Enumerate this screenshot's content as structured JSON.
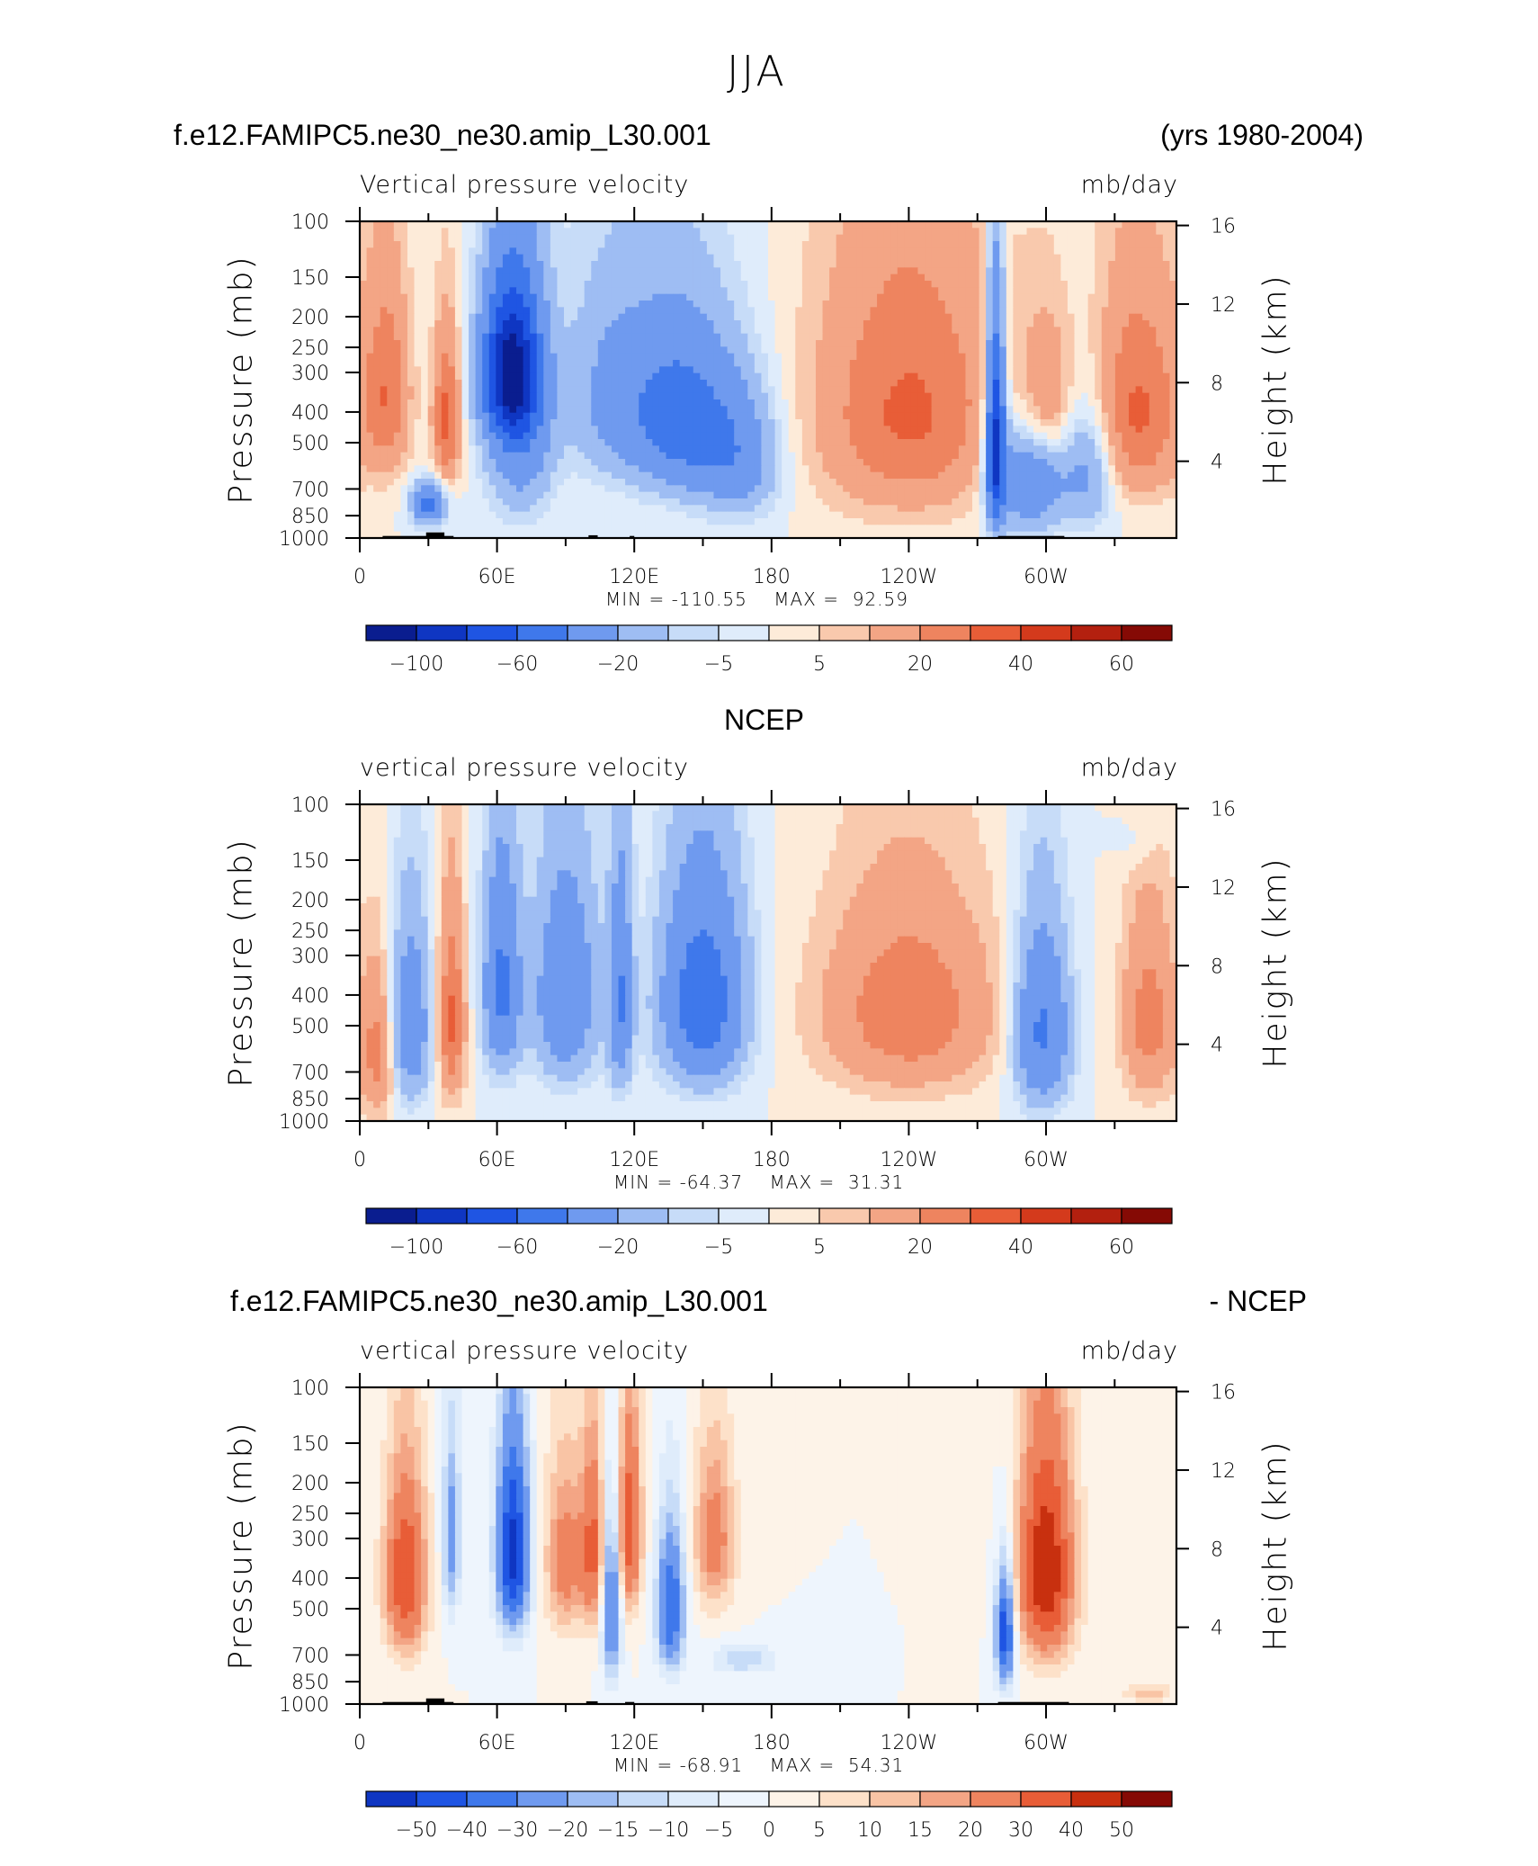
{
  "main_title": "JJA",
  "colors": {
    "neg": [
      "#0a1d8f",
      "#0f36c2",
      "#1f55e3",
      "#3f78eb",
      "#6f9aef",
      "#9ebdf3",
      "#c7dcf8",
      "#dfecfb"
    ],
    "pos": [
      "#fdebd9",
      "#f9c9ad",
      "#f3a585",
      "#ee845f",
      "#e85d37",
      "#d43a1c",
      "#b3200f",
      "#850a05"
    ],
    "diff": [
      "#0f36c2",
      "#1f55e3",
      "#3f78eb",
      "#6f9aef",
      "#9ebdf3",
      "#c7dcf8",
      "#dfecfb",
      "#eef5fd",
      "#fdf3e8",
      "#fde1c9",
      "#f9c4a5",
      "#f3a585",
      "#ee845f",
      "#e85d37",
      "#c8300f",
      "#850a05"
    ],
    "land": "#000000"
  },
  "panels": [
    {
      "title_left": "f.e12.FAMIPC5.ne30_ne30.amip_L30.001",
      "title_right": "(yrs 1980-2004)",
      "sub_left": "Vertical pressure velocity",
      "sub_right": "mb/day",
      "ylabel": "Pressure (mb)",
      "ylabel_right": "Height (km)",
      "min_label": "MIN =",
      "min_value": "-110.55",
      "max_label": "MAX =",
      "max_value": "92.59",
      "colorbar_labels": [
        "−100",
        "−60",
        "−20",
        "−5",
        "5",
        "20",
        "40",
        "60"
      ]
    },
    {
      "title_left": "NCEP",
      "title_right": "",
      "sub_left": "vertical pressure velocity",
      "sub_right": "mb/day",
      "ylabel": "Pressure (mb)",
      "ylabel_right": "Height (km)",
      "min_label": "MIN =",
      "min_value": "-64.37",
      "max_label": "MAX =",
      "max_value": "31.31",
      "colorbar_labels": [
        "−100",
        "−60",
        "−20",
        "−5",
        "5",
        "20",
        "40",
        "60"
      ]
    },
    {
      "title_left": "f.e12.FAMIPC5.ne30_ne30.amip_L30.001",
      "title_right": "- NCEP",
      "sub_left": "vertical pressure velocity",
      "sub_right": "mb/day",
      "ylabel": "Pressure (mb)",
      "ylabel_right": "Height (km)",
      "min_label": "MIN =",
      "min_value": "-68.91",
      "max_label": "MAX =",
      "max_value": "54.31",
      "colorbar_labels": [
        "−50",
        "−40",
        "−30",
        "−20",
        "−15",
        "−10",
        "−5",
        "0",
        "5",
        "10",
        "15",
        "20",
        "30",
        "40",
        "50"
      ]
    }
  ],
  "chart_data": {
    "type": "heatmap",
    "title": "JJA",
    "x_tick_labels": [
      "0",
      "60E",
      "120E",
      "180",
      "120W",
      "60W"
    ],
    "x_range_deg": [
      0,
      357
    ],
    "pressure_ticks": [
      100,
      150,
      200,
      250,
      300,
      400,
      500,
      700,
      850,
      1000
    ],
    "pressure_tick_labels": [
      "100",
      "150",
      "200",
      "250",
      "300",
      "400",
      "500",
      "700",
      "850",
      "1000"
    ],
    "height_ticks_km": [
      4,
      8,
      12,
      16
    ],
    "height_tick_labels": [
      "4",
      "8",
      "12",
      "16"
    ],
    "levels_main": [
      -100,
      -80,
      -60,
      -40,
      -20,
      -10,
      -5,
      0,
      5,
      10,
      20,
      30,
      40,
      50,
      60
    ],
    "levels_diff": [
      -50,
      -40,
      -30,
      -20,
      -15,
      -10,
      -5,
      0,
      5,
      10,
      15,
      20,
      30,
      40,
      50
    ],
    "panels": [
      {
        "name": "model",
        "min": -110.55,
        "max": 92.59,
        "blobs": [
          {
            "lon": 12,
            "p": 350,
            "dlon": 10,
            "dp": 250,
            "amp": 28
          },
          {
            "lon": 38,
            "p": 420,
            "dlon": 6,
            "dp": 230,
            "amp": 34
          },
          {
            "lon": 30,
            "p": 780,
            "dlon": 7,
            "dp": 120,
            "amp": -45
          },
          {
            "lon": 66,
            "p": 300,
            "dlon": 12,
            "dp": 160,
            "amp": -95
          },
          {
            "lon": 70,
            "p": 450,
            "dlon": 14,
            "dp": 330,
            "amp": -35
          },
          {
            "lon": 140,
            "p": 420,
            "dlon": 22,
            "dp": 250,
            "amp": -50
          },
          {
            "lon": 165,
            "p": 560,
            "dlon": 18,
            "dp": 260,
            "amp": -30
          },
          {
            "lon": 110,
            "p": 350,
            "dlon": 20,
            "dp": 250,
            "amp": -22
          },
          {
            "lon": 240,
            "p": 400,
            "dlon": 40,
            "dp": 380,
            "amp": 32
          },
          {
            "lon": 278,
            "p": 500,
            "dlon": 4,
            "dp": 350,
            "amp": -90
          },
          {
            "lon": 292,
            "p": 650,
            "dlon": 15,
            "dp": 260,
            "amp": -40
          },
          {
            "lon": 318,
            "p": 600,
            "dlon": 12,
            "dp": 280,
            "amp": -25
          },
          {
            "lon": 340,
            "p": 400,
            "dlon": 20,
            "dp": 300,
            "amp": 32
          },
          {
            "lon": 300,
            "p": 380,
            "dlon": 12,
            "dp": 200,
            "amp": 22
          }
        ],
        "land": [
          [
            10,
            41,
            985,
            1000
          ],
          [
            29,
            37,
            960,
            1000
          ],
          [
            100,
            104,
            980,
            1000
          ],
          [
            118,
            120,
            985,
            1000
          ],
          [
            279,
            308,
            985,
            1000
          ]
        ]
      },
      {
        "name": "NCEP",
        "min": -64.37,
        "max": 31.31,
        "blobs": [
          {
            "lon": 8,
            "p": 600,
            "dlon": 8,
            "dp": 330,
            "amp": 25
          },
          {
            "lon": 22,
            "p": 500,
            "dlon": 9,
            "dp": 320,
            "amp": -35
          },
          {
            "lon": 40,
            "p": 480,
            "dlon": 6,
            "dp": 330,
            "amp": 32
          },
          {
            "lon": 62,
            "p": 380,
            "dlon": 8,
            "dp": 280,
            "amp": -45
          },
          {
            "lon": 90,
            "p": 400,
            "dlon": 14,
            "dp": 300,
            "amp": -38
          },
          {
            "lon": 114,
            "p": 420,
            "dlon": 5,
            "dp": 320,
            "amp": -40
          },
          {
            "lon": 150,
            "p": 420,
            "dlon": 18,
            "dp": 300,
            "amp": -55
          },
          {
            "lon": 240,
            "p": 450,
            "dlon": 38,
            "dp": 320,
            "amp": 28
          },
          {
            "lon": 298,
            "p": 520,
            "dlon": 12,
            "dp": 330,
            "amp": -45
          },
          {
            "lon": 345,
            "p": 480,
            "dlon": 12,
            "dp": 330,
            "amp": 25
          },
          {
            "lon": 340,
            "p": 130,
            "dlon": 10,
            "dp": 30,
            "amp": -6
          }
        ],
        "land": []
      },
      {
        "name": "diff",
        "min": -68.91,
        "max": 54.31,
        "blobs": [
          {
            "lon": 20,
            "p": 400,
            "dlon": 9,
            "dp": 260,
            "amp": 40
          },
          {
            "lon": 40,
            "p": 300,
            "dlon": 4,
            "dp": 200,
            "amp": -25
          },
          {
            "lon": 67,
            "p": 330,
            "dlon": 7,
            "dp": 230,
            "amp": -55
          },
          {
            "lon": 90,
            "p": 350,
            "dlon": 9,
            "dp": 220,
            "amp": 25
          },
          {
            "lon": 102,
            "p": 320,
            "dlon": 5,
            "dp": 220,
            "amp": 30
          },
          {
            "lon": 110,
            "p": 500,
            "dlon": 4,
            "dp": 300,
            "amp": -35
          },
          {
            "lon": 118,
            "p": 280,
            "dlon": 5,
            "dp": 200,
            "amp": 38
          },
          {
            "lon": 136,
            "p": 500,
            "dlon": 6,
            "dp": 260,
            "amp": -40
          },
          {
            "lon": 155,
            "p": 300,
            "dlon": 9,
            "dp": 180,
            "amp": 25
          },
          {
            "lon": 168,
            "p": 720,
            "dlon": 14,
            "dp": 80,
            "amp": -15
          },
          {
            "lon": 282,
            "p": 600,
            "dlon": 4,
            "dp": 250,
            "amp": -50
          },
          {
            "lon": 300,
            "p": 380,
            "dlon": 12,
            "dp": 300,
            "amp": 50
          },
          {
            "lon": 345,
            "p": 930,
            "dlon": 10,
            "dp": 60,
            "amp": 15
          }
        ],
        "land": [
          [
            10,
            41,
            985,
            1000
          ],
          [
            29,
            37,
            960,
            1000
          ],
          [
            99,
            104,
            980,
            1000
          ],
          [
            116,
            120,
            985,
            1000
          ],
          [
            279,
            310,
            985,
            1000
          ]
        ]
      }
    ]
  }
}
